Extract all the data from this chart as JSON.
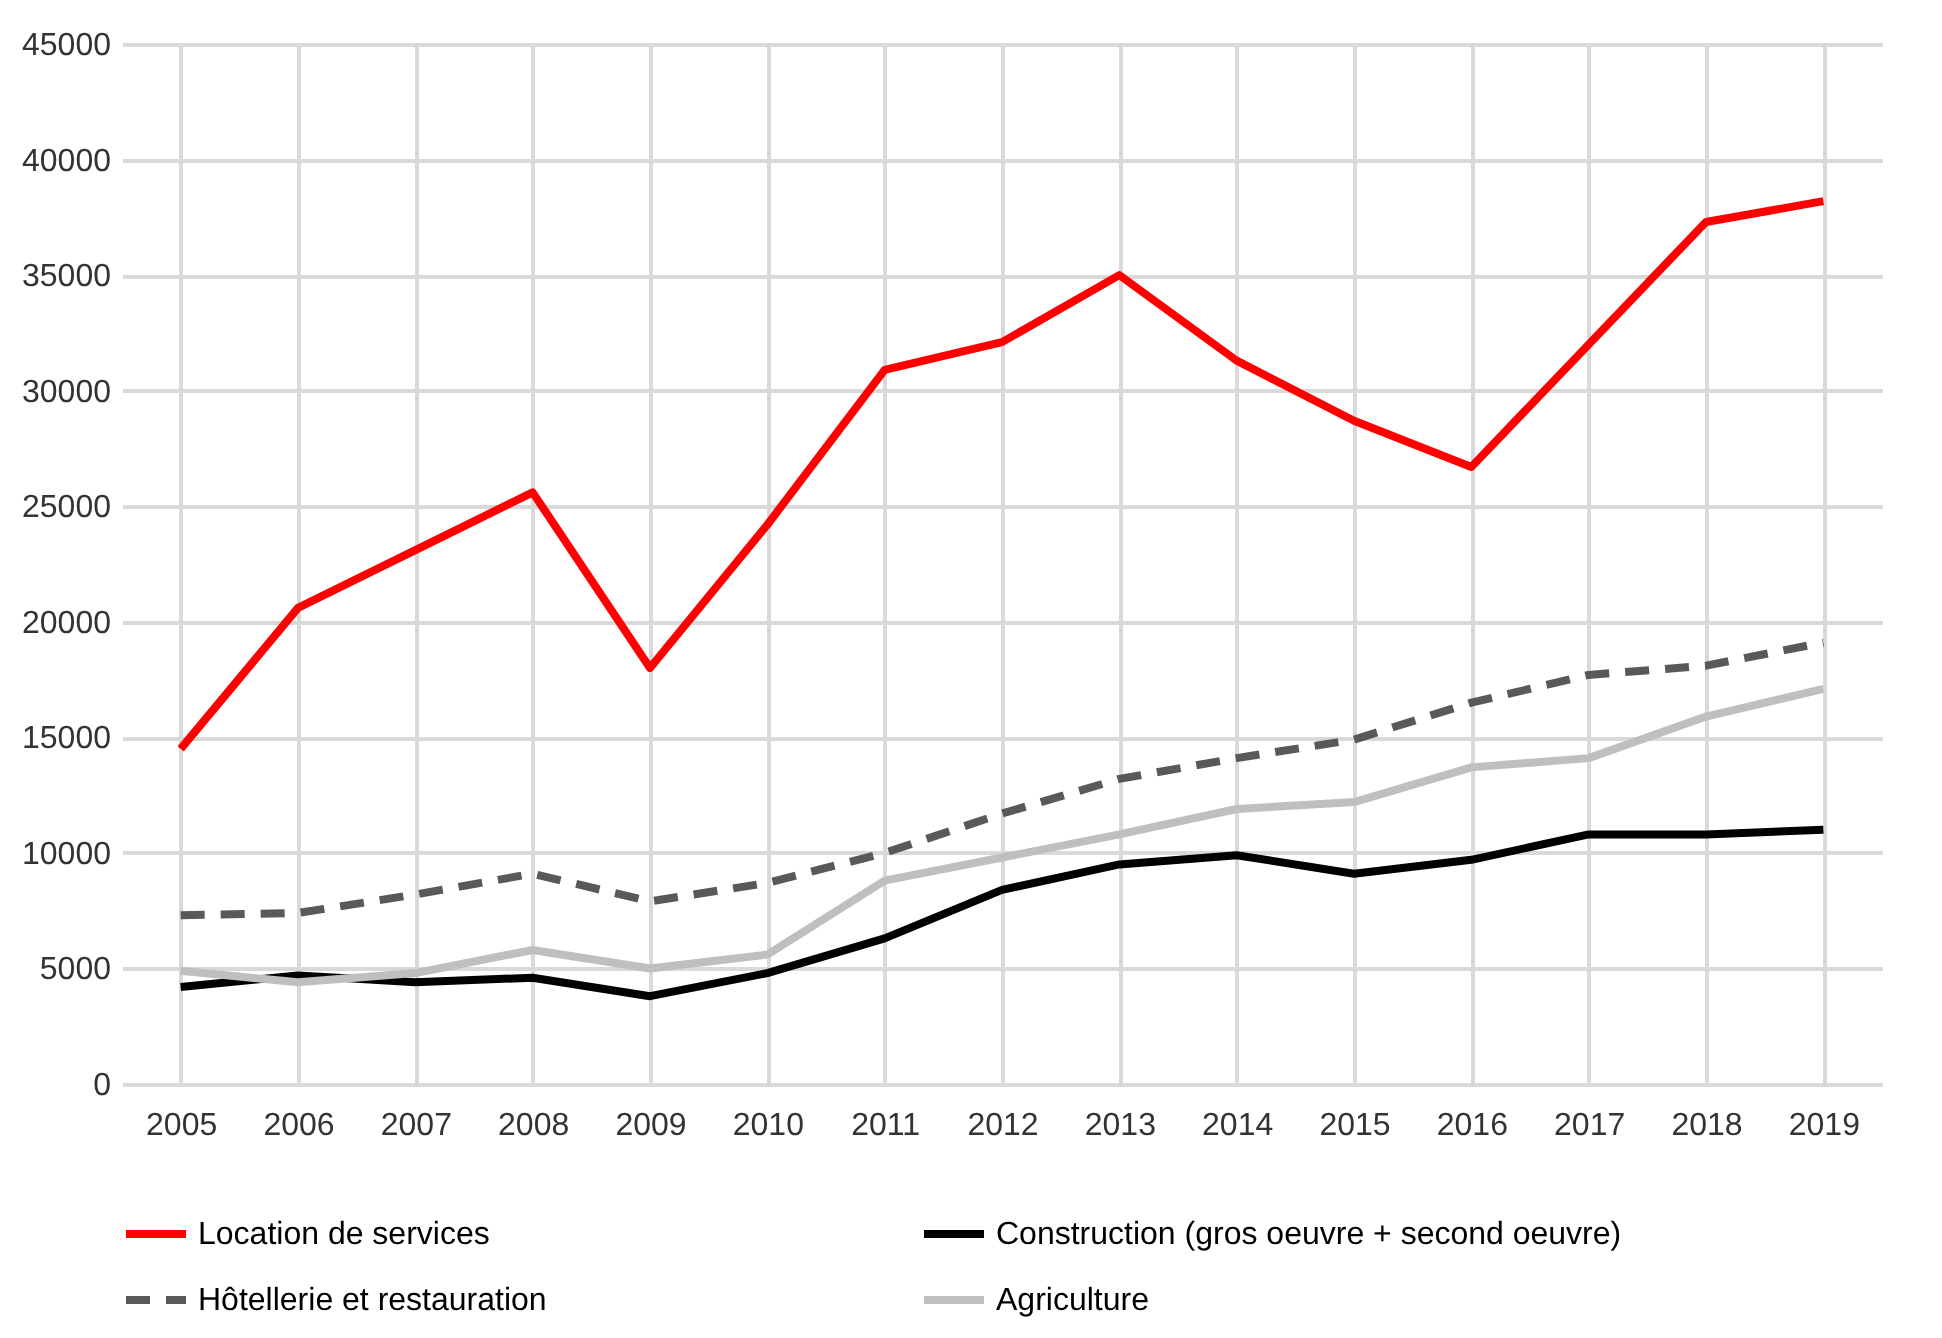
{
  "chart_data": {
    "type": "line",
    "categories": [
      "2005",
      "2006",
      "2007",
      "2008",
      "2009",
      "2010",
      "2011",
      "2012",
      "2013",
      "2014",
      "2015",
      "2016",
      "2017",
      "2018",
      "2019"
    ],
    "series": [
      {
        "name": "Location de services",
        "color": "#ff0000",
        "line_style": "solid",
        "values": [
          14500,
          20600,
          23100,
          25600,
          18000,
          24200,
          30900,
          32100,
          35000,
          31300,
          28700,
          26700,
          32000,
          37300,
          38200
        ]
      },
      {
        "name": "Construction (gros oeuvre + second oeuvre)",
        "color": "#000000",
        "line_style": "solid",
        "values": [
          4200,
          4700,
          4400,
          4600,
          3800,
          4800,
          6300,
          8400,
          9500,
          9900,
          9100,
          9700,
          10800,
          10800,
          11000
        ]
      },
      {
        "name": "Hôtellerie et restauration",
        "color": "#595959",
        "line_style": "dashed",
        "values": [
          7300,
          7400,
          8200,
          9100,
          7900,
          8700,
          10000,
          11700,
          13200,
          14100,
          14900,
          16500,
          17700,
          18100,
          19100
        ]
      },
      {
        "name": "Agriculture",
        "color": "#bfbfbf",
        "line_style": "solid",
        "values": [
          4900,
          4400,
          4800,
          5800,
          5000,
          5600,
          8800,
          9800,
          10800,
          11900,
          12200,
          13700,
          14100,
          15900,
          17100
        ]
      }
    ],
    "ylim": [
      0,
      45000
    ],
    "yticks": [
      0,
      5000,
      10000,
      15000,
      20000,
      25000,
      30000,
      35000,
      40000,
      45000
    ],
    "grid": true,
    "legend": "bottom",
    "marker": "none"
  }
}
